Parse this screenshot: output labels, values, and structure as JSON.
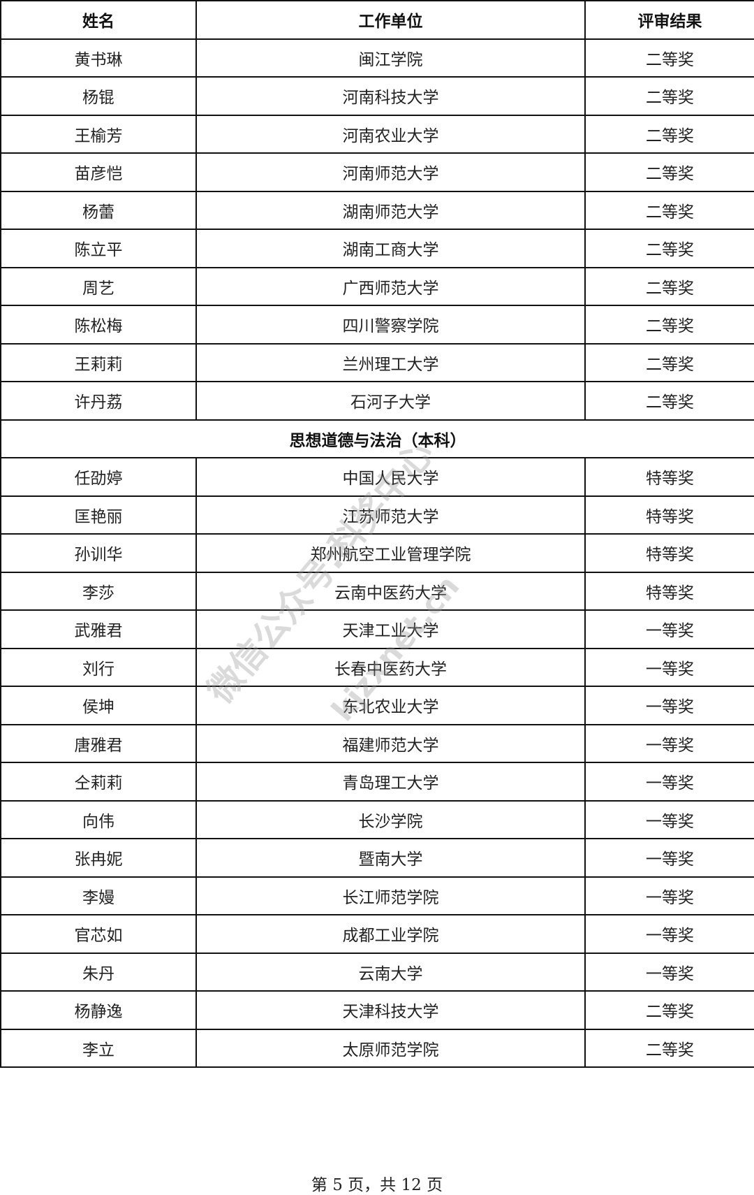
{
  "headers": [
    "姓名",
    "工作单位",
    "评审结果"
  ],
  "rows_a": [
    [
      "黄书琳",
      "闽江学院",
      "二等奖"
    ],
    [
      "杨锟",
      "河南科技大学",
      "二等奖"
    ],
    [
      "王榆芳",
      "河南农业大学",
      "二等奖"
    ],
    [
      "苗彦恺",
      "河南师范大学",
      "二等奖"
    ],
    [
      "杨蕾",
      "湖南师范大学",
      "二等奖"
    ],
    [
      "陈立平",
      "湖南工商大学",
      "二等奖"
    ],
    [
      "周艺",
      "广西师范大学",
      "二等奖"
    ],
    [
      "陈松梅",
      "四川警察学院",
      "二等奖"
    ],
    [
      "王莉莉",
      "兰州理工大学",
      "二等奖"
    ],
    [
      "许丹荔",
      "石河子大学",
      "二等奖"
    ]
  ],
  "section_title": "思想道德与法治（本科）",
  "rows_b": [
    [
      "任劭婷",
      "中国人民大学",
      "特等奖"
    ],
    [
      "匡艳丽",
      "江苏师范大学",
      "特等奖"
    ],
    [
      "孙训华",
      "郑州航空工业管理学院",
      "特等奖"
    ],
    [
      "李莎",
      "云南中医药大学",
      "特等奖"
    ],
    [
      "武雅君",
      "天津工业大学",
      "一等奖"
    ],
    [
      "刘行",
      "长春中医药大学",
      "一等奖"
    ],
    [
      "侯坤",
      "东北农业大学",
      "一等奖"
    ],
    [
      "唐雅君",
      "福建师范大学",
      "一等奖"
    ],
    [
      "仝莉莉",
      "青岛理工大学",
      "一等奖"
    ],
    [
      "向伟",
      "长沙学院",
      "一等奖"
    ],
    [
      "张冉妮",
      "暨南大学",
      "一等奖"
    ],
    [
      "李嫚",
      "长江师范学院",
      "一等奖"
    ],
    [
      "官芯如",
      "成都工业学院",
      "一等奖"
    ],
    [
      "朱丹",
      "云南大学",
      "一等奖"
    ],
    [
      "杨静逸",
      "天津科技大学",
      "二等奖"
    ],
    [
      "李立",
      "太原师范学院",
      "二等奖"
    ]
  ],
  "footer": "第 5 页，共 12 页",
  "watermark": [
    "微信公众号:科奖中心",
    "kjzxnet.cn"
  ]
}
